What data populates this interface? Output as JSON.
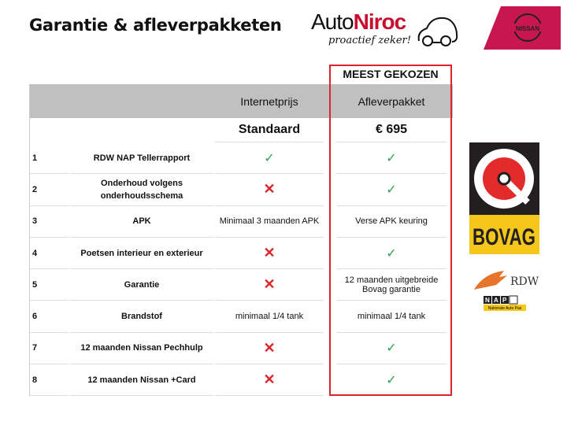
{
  "title": "Garantie & afleverpakketen",
  "logos": {
    "autoniroc": {
      "auto": "Auto",
      "niroc": "Niroc",
      "tagline": "proactief zeker!"
    },
    "nissan": "NISSAN",
    "bovag": "BOVAG",
    "rdw": "RDW",
    "nap": "NAP",
    "nap_sub": "Nationale Auto Pas"
  },
  "highlight_label": "MEEST GEKOZEN",
  "columns": [
    "Internetprijs",
    "Afleverpakket"
  ],
  "prices": [
    "Standaard",
    "€ 695"
  ],
  "rows": [
    {
      "num": "1",
      "label": "RDW NAP Tellerrapport",
      "internet": "check",
      "afl": "check"
    },
    {
      "num": "2",
      "label": "Onderhoud volgens onderhoudsschema",
      "internet": "cross",
      "afl": "check"
    },
    {
      "num": "3",
      "label": "APK",
      "internet": "Minimaal 3 maanden APK",
      "afl": "Verse APK keuring"
    },
    {
      "num": "4",
      "label": "Poetsen interieur en exterieur",
      "internet": "cross",
      "afl": "check"
    },
    {
      "num": "5",
      "label": "Garantie",
      "internet": "cross",
      "afl": "12 maanden uitgebreide Bovag garantie"
    },
    {
      "num": "6",
      "label": "Brandstof",
      "internet": "minimaal 1/4 tank",
      "afl": "minimaal 1/4 tank"
    },
    {
      "num": "7",
      "label": "12 maanden Nissan Pechhulp",
      "internet": "cross",
      "afl": "check"
    },
    {
      "num": "8",
      "label": "12 maanden Nissan +Card",
      "internet": "cross",
      "afl": "check"
    }
  ],
  "colors": {
    "accent": "#d9262e",
    "check": "#2aa05a",
    "nissan": "#c8164f",
    "header_bg": "#c0c0c0",
    "bovag_yellow": "#f5c71a"
  }
}
